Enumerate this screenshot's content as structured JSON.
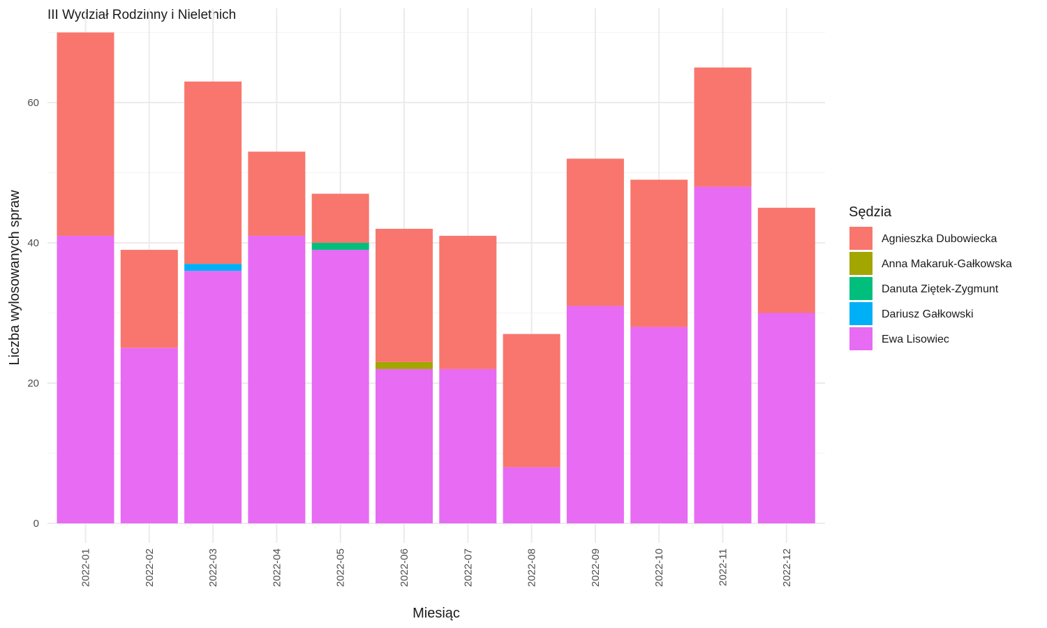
{
  "chart_data": {
    "type": "bar",
    "stacked": true,
    "title": "III Wydział Rodzinny i Nieletnich",
    "xlabel": "Miesiąc",
    "ylabel": "Liczba wylosowanych spraw",
    "ylim": [
      0,
      70
    ],
    "yticks": [
      0,
      20,
      40,
      60
    ],
    "grid": true,
    "legend_title": "Sędzia",
    "legend_position": "right",
    "categories": [
      "2022-01",
      "2022-02",
      "2022-03",
      "2022-04",
      "2022-05",
      "2022-06",
      "2022-07",
      "2022-08",
      "2022-09",
      "2022-10",
      "2022-11",
      "2022-12"
    ],
    "series": [
      {
        "name": "Ewa Lisowiec",
        "color": "#E76BF3",
        "values": [
          41,
          25,
          36,
          41,
          39,
          22,
          22,
          8,
          31,
          28,
          48,
          30
        ]
      },
      {
        "name": "Dariusz Gałkowski",
        "color": "#00B0F6",
        "values": [
          0,
          0,
          1,
          0,
          0,
          0,
          0,
          0,
          0,
          0,
          0,
          0
        ]
      },
      {
        "name": "Danuta Ziętek-Zygmunt",
        "color": "#00BF7D",
        "values": [
          0,
          0,
          0,
          0,
          1,
          0,
          0,
          0,
          0,
          0,
          0,
          0
        ]
      },
      {
        "name": "Anna Makaruk-Gałkowska",
        "color": "#A3A500",
        "values": [
          0,
          0,
          0,
          0,
          0,
          1,
          0,
          0,
          0,
          0,
          0,
          0
        ]
      },
      {
        "name": "Agnieszka Dubowiecka",
        "color": "#F8766D",
        "values": [
          29,
          14,
          26,
          12,
          7,
          19,
          19,
          19,
          21,
          21,
          17,
          15
        ]
      }
    ],
    "legend_order": [
      "Agnieszka Dubowiecka",
      "Anna Makaruk-Gałkowska",
      "Danuta Ziętek-Zygmunt",
      "Dariusz Gałkowski",
      "Ewa Lisowiec"
    ]
  }
}
